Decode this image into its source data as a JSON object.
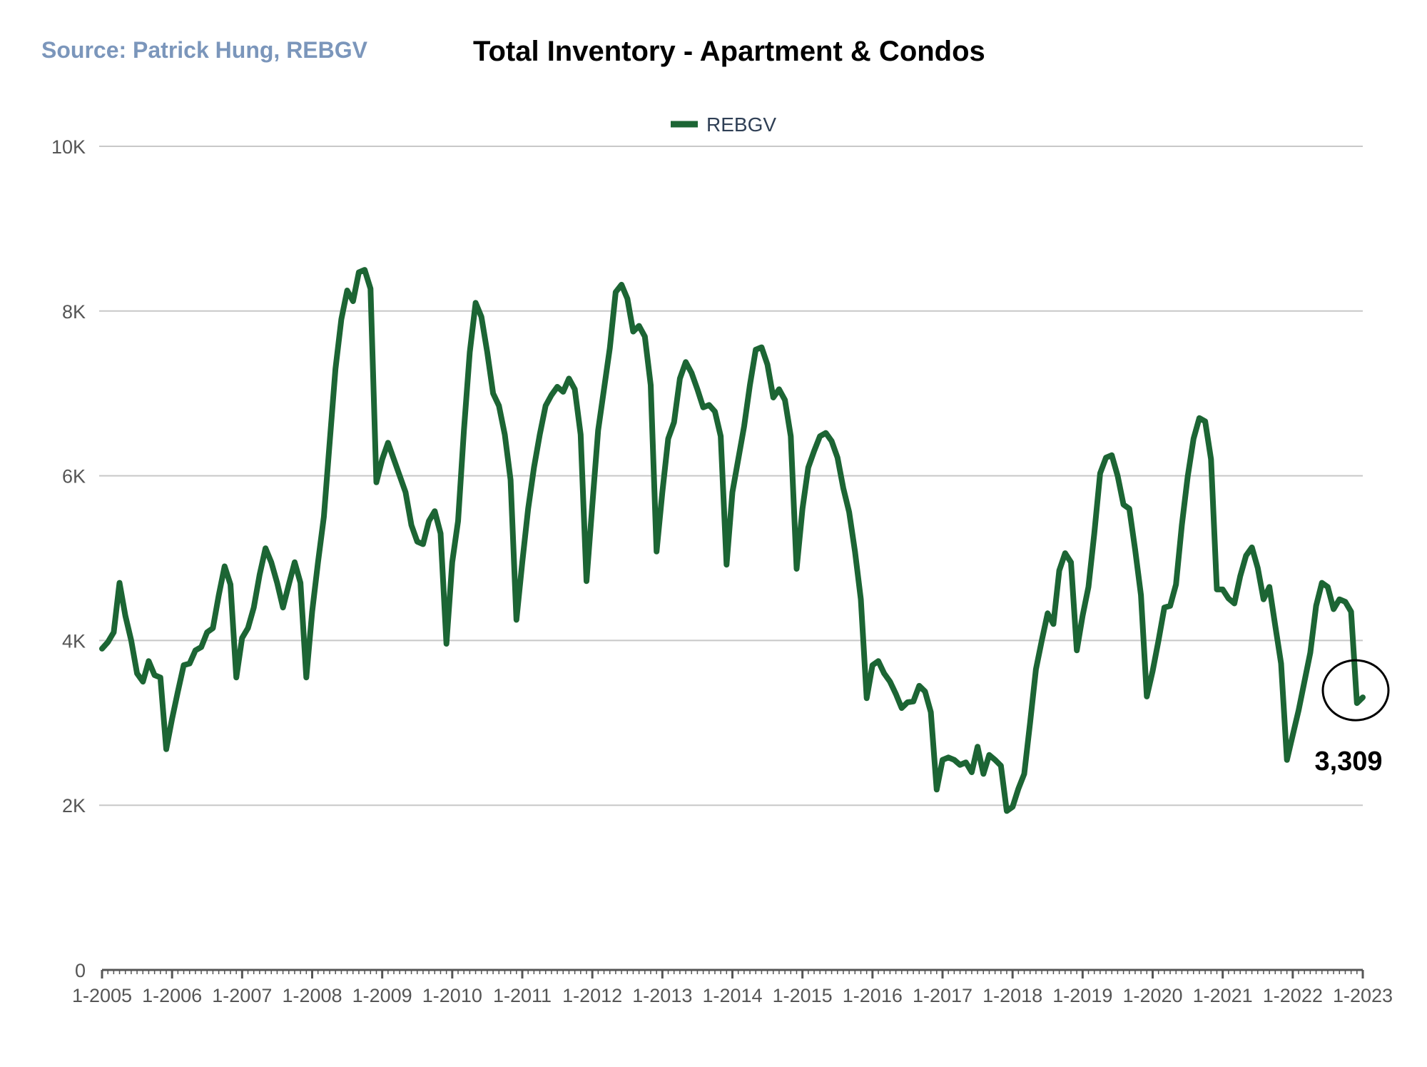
{
  "source": "Source:  Patrick Hung, REBGV",
  "chart_data": {
    "type": "line",
    "title": "Total Inventory - Apartment & Condos",
    "xlabel": "",
    "ylabel": "",
    "ylim": [
      0,
      10000
    ],
    "yticks": [
      {
        "value": 0,
        "label": "0"
      },
      {
        "value": 2000,
        "label": "2K"
      },
      {
        "value": 4000,
        "label": "4K"
      },
      {
        "value": 6000,
        "label": "6K"
      },
      {
        "value": 8000,
        "label": "8K"
      },
      {
        "value": 10000,
        "label": "10K"
      }
    ],
    "xticks": [
      "1-2005",
      "1-2006",
      "1-2007",
      "1-2008",
      "1-2009",
      "1-2010",
      "1-2011",
      "1-2012",
      "1-2013",
      "1-2014",
      "1-2015",
      "1-2016",
      "1-2017",
      "1-2018",
      "1-2019",
      "1-2020",
      "1-2021",
      "1-2022",
      "1-2023"
    ],
    "grid": true,
    "legend": "top-center",
    "series": [
      {
        "name": "REBGV",
        "color": "#1c6534",
        "x_start": "1-2005",
        "frequency": "monthly",
        "values": [
          3900,
          3980,
          4100,
          4700,
          4300,
          4000,
          3600,
          3500,
          3750,
          3580,
          3550,
          2680,
          3050,
          3380,
          3700,
          3720,
          3880,
          3920,
          4100,
          4150,
          4550,
          4900,
          4680,
          3550,
          4030,
          4150,
          4400,
          4800,
          5120,
          4950,
          4700,
          4400,
          4680,
          4950,
          4700,
          3550,
          4350,
          4950,
          5500,
          6400,
          7300,
          7900,
          8250,
          8120,
          8470,
          8500,
          8270,
          5920,
          6200,
          6400,
          6200,
          6000,
          5800,
          5400,
          5200,
          5170,
          5450,
          5570,
          5300,
          3960,
          4950,
          5450,
          6550,
          7500,
          8100,
          7930,
          7500,
          7000,
          6850,
          6500,
          5950,
          4250,
          4950,
          5600,
          6100,
          6500,
          6850,
          6980,
          7080,
          7020,
          7180,
          7050,
          6500,
          4720,
          5650,
          6550,
          7050,
          7550,
          8230,
          8320,
          8150,
          7750,
          7820,
          7690,
          7100,
          5080,
          5800,
          6450,
          6650,
          7180,
          7380,
          7250,
          7050,
          6830,
          6860,
          6780,
          6480,
          4920,
          5800,
          6200,
          6600,
          7100,
          7530,
          7560,
          7350,
          6950,
          7050,
          6920,
          6480,
          4870,
          5600,
          6100,
          6300,
          6480,
          6520,
          6420,
          6220,
          5850,
          5560,
          5080,
          4500,
          3300,
          3700,
          3750,
          3600,
          3500,
          3350,
          3180,
          3250,
          3260,
          3450,
          3380,
          3130,
          2190,
          2550,
          2580,
          2550,
          2490,
          2520,
          2400,
          2710,
          2380,
          2610,
          2550,
          2480,
          1930,
          1980,
          2200,
          2380,
          3000,
          3650,
          4000,
          4330,
          4200,
          4850,
          5060,
          4950,
          3880,
          4300,
          4650,
          5300,
          6030,
          6220,
          6250,
          6000,
          5650,
          5600,
          5100,
          4550,
          3320,
          3630,
          4000,
          4400,
          4420,
          4680,
          5400,
          5990,
          6450,
          6700,
          6660,
          6200,
          4620,
          4620,
          4510,
          4450,
          4780,
          5030,
          5130,
          4880,
          4500,
          4650,
          4180,
          3720,
          2550,
          2850,
          3150,
          3500,
          3850,
          4420,
          4700,
          4650,
          4380,
          4500,
          4470,
          4350,
          3240,
          3309
        ]
      }
    ],
    "annotations": [
      {
        "label": "3,309",
        "x": "1-2023",
        "y": 3309,
        "marker": "circle"
      }
    ]
  }
}
